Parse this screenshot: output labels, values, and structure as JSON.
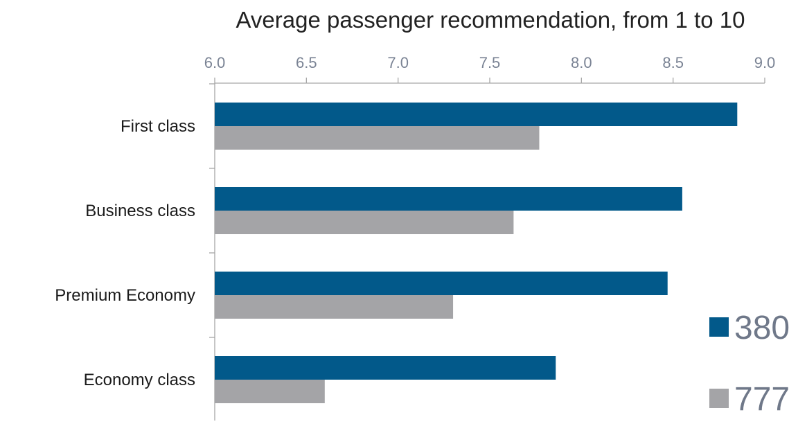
{
  "chart_data": {
    "type": "bar",
    "orientation": "horizontal",
    "title": "Average passenger recommendation, from 1 to 10",
    "xlabel": "",
    "ylabel": "",
    "xlim": [
      6.0,
      9.0
    ],
    "x_ticks": [
      "6.0",
      "6.5",
      "7.0",
      "7.5",
      "8.0",
      "8.5",
      "9.0"
    ],
    "x_axis_position": "top",
    "grid": false,
    "categories": [
      "First class",
      "Business class",
      "Premium Economy",
      "Economy class"
    ],
    "series": [
      {
        "name": "380",
        "color": "#02598a",
        "values": [
          8.85,
          8.55,
          8.47,
          7.86
        ]
      },
      {
        "name": "777",
        "color": "#a4a4a7",
        "values": [
          7.77,
          7.63,
          7.3,
          6.6
        ]
      }
    ],
    "legend": {
      "placement": "bottom-right"
    }
  }
}
